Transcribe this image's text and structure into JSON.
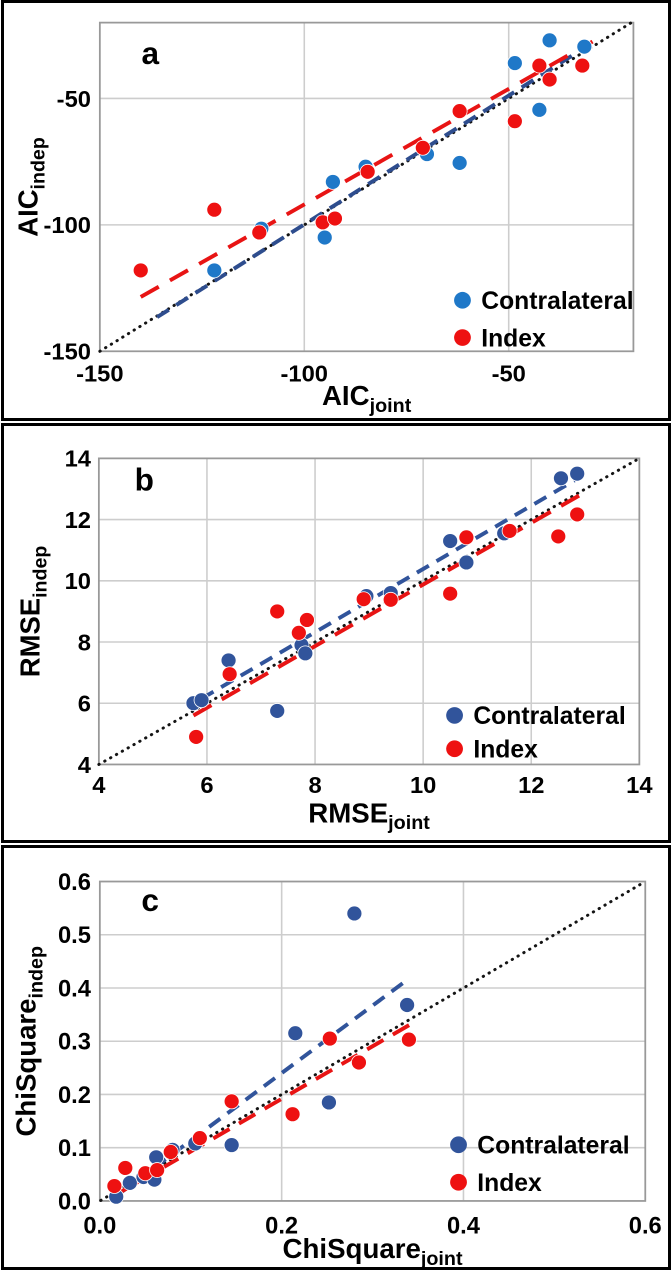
{
  "figure": {
    "bg": "#ffffff",
    "panel_border_color": "#000000",
    "grid_color": "#cdcdcd",
    "plot_border_color": "#999999",
    "identity_color": "#141414",
    "text_color": "#000000",
    "legend_labels": [
      "Contralateral",
      "Index"
    ]
  },
  "chart_data": [
    {
      "type": "scatter",
      "panel_label": "a",
      "xlabel": {
        "main": "AIC",
        "sub": "joint"
      },
      "ylabel": {
        "main": "AIC",
        "sub": "indep"
      },
      "xlim": [
        -150,
        -19.5
      ],
      "ylim": [
        -150,
        -20
      ],
      "xticks": [
        {
          "v": -150,
          "label": "-150"
        },
        {
          "v": -100,
          "label": "-100"
        },
        {
          "v": -50,
          "label": "-50"
        }
      ],
      "yticks": [
        {
          "v": -50,
          "label": "-50"
        },
        {
          "v": -100,
          "label": "-100"
        },
        {
          "v": -150,
          "label": "-150"
        }
      ],
      "xgrid": [
        -100,
        -50
      ],
      "ygrid": [
        -50,
        -100
      ],
      "grid_on": true,
      "legend_position": "lower-right",
      "identity_line": {
        "from": [
          -150,
          -150
        ],
        "to": [
          -20,
          -20
        ]
      },
      "series": [
        {
          "name": "Contralateral",
          "color": "#1f78c8",
          "points": [
            [
              -122,
              -118
            ],
            [
              -110.5,
              -101.5
            ],
            [
              -95,
              -105
            ],
            [
              -93,
              -83
            ],
            [
              -85,
              -77
            ],
            [
              -70,
              -72
            ],
            [
              -62,
              -75.5
            ],
            [
              -48.5,
              -36
            ],
            [
              -42.5,
              -54.5
            ],
            [
              -40,
              -27
            ],
            [
              -31.5,
              -29.5
            ]
          ]
        },
        {
          "name": "Index",
          "color": "#ee1111",
          "points": [
            [
              -140,
              -118
            ],
            [
              -122,
              -94
            ],
            [
              -111,
              -103
            ],
            [
              -95.5,
              -99
            ],
            [
              -92.5,
              -97.5
            ],
            [
              -84.5,
              -79
            ],
            [
              -71,
              -69.5
            ],
            [
              -62,
              -55
            ],
            [
              -48.5,
              -59
            ],
            [
              -42.5,
              -37
            ],
            [
              -40,
              -42.5
            ],
            [
              -32,
              -37
            ]
          ]
        }
      ],
      "trendlines": [
        {
          "series": "Contralateral",
          "color": "#2e4d8e",
          "dash": "14 9",
          "width": 4,
          "from": [
            -136,
            -136.5
          ],
          "to": [
            -31,
            -29.5
          ]
        },
        {
          "series": "Index",
          "color": "#e81414",
          "dash": "21 13",
          "width": 4,
          "from": [
            -140,
            -128.5
          ],
          "to": [
            -29.5,
            -27.5
          ]
        }
      ]
    },
    {
      "type": "scatter",
      "panel_label": "b",
      "xlabel": {
        "main": "RMSE",
        "sub": "joint"
      },
      "ylabel": {
        "main": "RMSE",
        "sub": "indep"
      },
      "xlim": [
        4,
        14
      ],
      "ylim": [
        4,
        14
      ],
      "xticks": [
        {
          "v": 4,
          "label": "4"
        },
        {
          "v": 6,
          "label": "6"
        },
        {
          "v": 8,
          "label": "8"
        },
        {
          "v": 10,
          "label": "10"
        },
        {
          "v": 12,
          "label": "12"
        },
        {
          "v": 14,
          "label": "14"
        }
      ],
      "yticks": [
        {
          "v": 14,
          "label": "14"
        },
        {
          "v": 12,
          "label": "12"
        },
        {
          "v": 10,
          "label": "10"
        },
        {
          "v": 8,
          "label": "8"
        },
        {
          "v": 6,
          "label": "6"
        },
        {
          "v": 4,
          "label": "4"
        }
      ],
      "xgrid": [
        6,
        8,
        10,
        12
      ],
      "ygrid": [
        6,
        8,
        10,
        12
      ],
      "grid_on": true,
      "legend_position": "lower-right",
      "identity_line": {
        "from": [
          4,
          4
        ],
        "to": [
          14,
          14
        ]
      },
      "series": [
        {
          "name": "Contralateral",
          "color": "#31549b",
          "points": [
            [
              5.75,
              6.0
            ],
            [
              5.9,
              6.1
            ],
            [
              6.4,
              7.4
            ],
            [
              7.3,
              5.75
            ],
            [
              7.75,
              7.9
            ],
            [
              7.82,
              7.63
            ],
            [
              8.95,
              9.5
            ],
            [
              9.4,
              9.6
            ],
            [
              10.5,
              11.3
            ],
            [
              10.8,
              10.6
            ],
            [
              11.5,
              11.55
            ],
            [
              12.55,
              13.35
            ],
            [
              12.85,
              13.5
            ]
          ]
        },
        {
          "name": "Index",
          "color": "#ee1111",
          "points": [
            [
              5.8,
              4.9
            ],
            [
              6.42,
              6.95
            ],
            [
              7.3,
              9.0
            ],
            [
              7.7,
              8.3
            ],
            [
              7.85,
              8.72
            ],
            [
              8.9,
              9.4
            ],
            [
              9.4,
              9.38
            ],
            [
              10.5,
              9.58
            ],
            [
              10.8,
              11.42
            ],
            [
              11.6,
              11.63
            ],
            [
              12.5,
              11.45
            ],
            [
              12.85,
              12.17
            ]
          ]
        }
      ],
      "trendlines": [
        {
          "series": "Contralateral",
          "color": "#31549b",
          "dash": "14 9",
          "width": 4,
          "from": [
            5.9,
            6.15
          ],
          "to": [
            12.8,
            13.28
          ]
        },
        {
          "series": "Index",
          "color": "#e81414",
          "dash": "21 12",
          "width": 4,
          "from": [
            5.75,
            5.6
          ],
          "to": [
            12.98,
            12.88
          ]
        }
      ]
    },
    {
      "type": "scatter",
      "panel_label": "c",
      "xlabel": {
        "main": "ChiSquare",
        "sub": "joint"
      },
      "ylabel": {
        "main": "ChiSquare",
        "sub": "indep"
      },
      "xlim": [
        0,
        0.6
      ],
      "ylim": [
        0,
        0.6
      ],
      "xticks": [
        {
          "v": 0.0,
          "label": "0.0"
        },
        {
          "v": 0.2,
          "label": "0.2"
        },
        {
          "v": 0.4,
          "label": "0.4"
        },
        {
          "v": 0.6,
          "label": "0.6"
        }
      ],
      "yticks": [
        {
          "v": 0.6,
          "label": "0.6"
        },
        {
          "v": 0.5,
          "label": "0.5"
        },
        {
          "v": 0.4,
          "label": "0.4"
        },
        {
          "v": 0.3,
          "label": "0.3"
        },
        {
          "v": 0.2,
          "label": "0.2"
        },
        {
          "v": 0.1,
          "label": "0.1"
        },
        {
          "v": 0.0,
          "label": "0.0"
        }
      ],
      "xgrid": [
        0.2,
        0.4
      ],
      "ygrid": [
        0.1,
        0.2,
        0.3,
        0.4,
        0.5
      ],
      "grid_on": true,
      "legend_position": "lower-right",
      "identity_line": {
        "from": [
          0.001,
          0.001
        ],
        "to": [
          0.598,
          0.598
        ]
      },
      "series": [
        {
          "name": "Contralateral",
          "color": "#31549b",
          "points": [
            [
              0.018,
              0.008
            ],
            [
              0.033,
              0.034
            ],
            [
              0.048,
              0.045
            ],
            [
              0.06,
              0.04
            ],
            [
              0.062,
              0.082
            ],
            [
              0.08,
              0.096
            ],
            [
              0.105,
              0.108
            ],
            [
              0.145,
              0.105
            ],
            [
              0.215,
              0.315
            ],
            [
              0.252,
              0.185
            ],
            [
              0.28,
              0.54
            ],
            [
              0.338,
              0.368
            ]
          ]
        },
        {
          "name": "Index",
          "color": "#ee1111",
          "points": [
            [
              0.016,
              0.028
            ],
            [
              0.028,
              0.062
            ],
            [
              0.05,
              0.052
            ],
            [
              0.063,
              0.058
            ],
            [
              0.078,
              0.092
            ],
            [
              0.11,
              0.118
            ],
            [
              0.145,
              0.187
            ],
            [
              0.212,
              0.163
            ],
            [
              0.253,
              0.305
            ],
            [
              0.285,
              0.26
            ],
            [
              0.34,
              0.303
            ]
          ]
        }
      ],
      "trendlines": [
        {
          "series": "Contralateral",
          "color": "#31549b",
          "dash": "14 9",
          "width": 4,
          "from": [
            0.02,
            0.012
          ],
          "to": [
            0.334,
            0.41
          ]
        },
        {
          "series": "Index",
          "color": "#e81414",
          "dash": "19 11",
          "width": 4,
          "from": [
            0.012,
            0.006
          ],
          "to": [
            0.347,
            0.337
          ]
        }
      ]
    }
  ]
}
